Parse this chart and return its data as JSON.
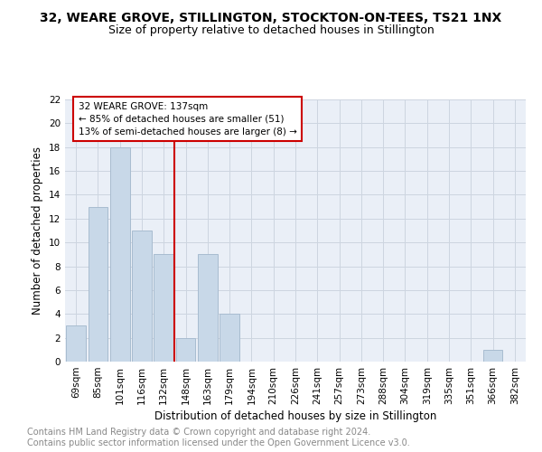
{
  "title": "32, WEARE GROVE, STILLINGTON, STOCKTON-ON-TEES, TS21 1NX",
  "subtitle": "Size of property relative to detached houses in Stillington",
  "xlabel": "Distribution of detached houses by size in Stillington",
  "ylabel": "Number of detached properties",
  "categories": [
    "69sqm",
    "85sqm",
    "101sqm",
    "116sqm",
    "132sqm",
    "148sqm",
    "163sqm",
    "179sqm",
    "194sqm",
    "210sqm",
    "226sqm",
    "241sqm",
    "257sqm",
    "273sqm",
    "288sqm",
    "304sqm",
    "319sqm",
    "335sqm",
    "351sqm",
    "366sqm",
    "382sqm"
  ],
  "values": [
    3,
    13,
    18,
    11,
    9,
    2,
    9,
    4,
    0,
    0,
    0,
    0,
    0,
    0,
    0,
    0,
    0,
    0,
    0,
    1,
    0
  ],
  "bar_color": "#c8d8e8",
  "bar_edge_color": "#a8bcd0",
  "vline_x_index": 4.5,
  "vline_color": "#cc0000",
  "annotation_text": "32 WEARE GROVE: 137sqm\n← 85% of detached houses are smaller (51)\n13% of semi-detached houses are larger (8) →",
  "annotation_box_color": "#ffffff",
  "annotation_box_edge_color": "#cc0000",
  "ylim": [
    0,
    22
  ],
  "yticks": [
    0,
    2,
    4,
    6,
    8,
    10,
    12,
    14,
    16,
    18,
    20,
    22
  ],
  "grid_color": "#cdd5e0",
  "bg_color": "#eaeff7",
  "footer": "Contains HM Land Registry data © Crown copyright and database right 2024.\nContains public sector information licensed under the Open Government Licence v3.0.",
  "title_fontsize": 10,
  "subtitle_fontsize": 9,
  "xlabel_fontsize": 8.5,
  "ylabel_fontsize": 8.5,
  "tick_fontsize": 7.5,
  "annotation_fontsize": 7.5,
  "footer_fontsize": 7.0
}
